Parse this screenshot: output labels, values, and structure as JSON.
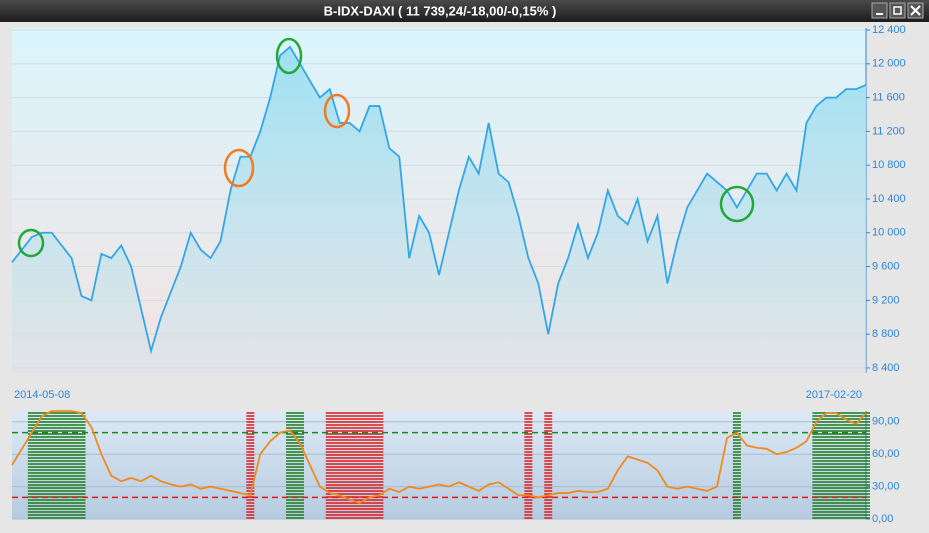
{
  "window_title": "B-IDX-DAXI ( 11 739,24/-18,00/-0,15% )",
  "chart_data": [
    {
      "type": "area",
      "color": "#33a6e6",
      "x_labels": [
        "2014-05-08",
        "2017-02-20"
      ],
      "values": [
        9650,
        9800,
        9950,
        10000,
        10000,
        9850,
        9700,
        9250,
        9200,
        9750,
        9700,
        9850,
        9600,
        9100,
        8600,
        9000,
        9300,
        9600,
        10000,
        9800,
        9700,
        9900,
        10500,
        10900,
        10900,
        11200,
        11600,
        12100,
        12200,
        12000,
        11800,
        11600,
        11700,
        11300,
        11300,
        11200,
        11500,
        11500,
        11000,
        10900,
        9700,
        10200,
        10000,
        9500,
        10000,
        10500,
        10900,
        10700,
        11300,
        10700,
        10600,
        10200,
        9700,
        9400,
        8800,
        9400,
        9700,
        10100,
        9700,
        10000,
        10500,
        10200,
        10100,
        10400,
        9900,
        10200,
        9400,
        9900,
        10300,
        10500,
        10700,
        10600,
        10500,
        10300,
        10500,
        10700,
        10700,
        10500,
        10700,
        10500,
        11300,
        11500,
        11600,
        11600,
        11700,
        11700,
        11750
      ],
      "ylim": [
        8340,
        12424
      ],
      "yticks": [
        {
          "value": 8400,
          "label": "8 400"
        },
        {
          "value": 8800,
          "label": "8 800"
        },
        {
          "value": 9200,
          "label": "9 200"
        },
        {
          "value": 9600,
          "label": "9 600"
        },
        {
          "value": 10000,
          "label": "10 000"
        },
        {
          "value": 10400,
          "label": "10 400"
        },
        {
          "value": 10800,
          "label": "10 800"
        },
        {
          "value": 11200,
          "label": "11 200"
        },
        {
          "value": 11600,
          "label": "11 600"
        },
        {
          "value": 12000,
          "label": "12 000"
        },
        {
          "value": 12400,
          "label": "12 400"
        }
      ],
      "grid": true
    },
    {
      "type": "line",
      "color": "#f08a1c",
      "values": [
        50,
        65,
        80,
        95,
        100,
        100,
        100,
        98,
        85,
        60,
        40,
        35,
        38,
        35,
        40,
        35,
        32,
        30,
        32,
        28,
        30,
        28,
        26,
        24,
        22,
        60,
        72,
        80,
        82,
        70,
        50,
        30,
        24,
        22,
        18,
        15,
        20,
        22,
        28,
        25,
        30,
        28,
        30,
        32,
        30,
        34,
        30,
        26,
        32,
        34,
        28,
        22,
        22,
        20,
        22,
        24,
        24,
        26,
        25,
        25,
        28,
        45,
        58,
        55,
        52,
        45,
        30,
        28,
        30,
        28,
        26,
        30,
        75,
        80,
        68,
        66,
        65,
        60,
        62,
        66,
        72,
        90,
        98,
        98,
        92,
        88,
        98
      ],
      "ylim": [
        0,
        100
      ],
      "yticks": [
        {
          "value": 0,
          "label": "0,00"
        },
        {
          "value": 30,
          "label": "30,00"
        },
        {
          "value": 60,
          "label": "60,00"
        },
        {
          "value": 90,
          "label": "90,00"
        }
      ],
      "levels": [
        {
          "value": 80,
          "color": "#1a8a1a"
        },
        {
          "value": 20,
          "color": "#e01818"
        }
      ],
      "zones": [
        {
          "start": 2,
          "end": 7,
          "color": "#1a7a1a"
        },
        {
          "start": 24,
          "end": 24,
          "color": "#e01818"
        },
        {
          "start": 28,
          "end": 29,
          "color": "#1a7a1a"
        },
        {
          "start": 32,
          "end": 37,
          "color": "#e01818"
        },
        {
          "start": 52,
          "end": 52,
          "color": "#e01818"
        },
        {
          "start": 54,
          "end": 54,
          "color": "#e01818"
        },
        {
          "start": 73,
          "end": 73,
          "color": "#1a7a1a"
        },
        {
          "start": 81,
          "end": 86,
          "color": "#1a7a1a"
        }
      ],
      "grid": true
    }
  ]
}
